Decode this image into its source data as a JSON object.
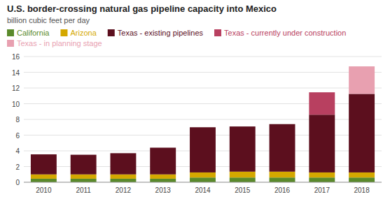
{
  "chart_data": {
    "type": "bar",
    "stacked": true,
    "title": "U.S. border-crossing natural gas pipeline capacity into Mexico",
    "subtitle": "billion cubic feet per day",
    "categories": [
      "2010",
      "2011",
      "2012",
      "2013",
      "2014",
      "2015",
      "2016",
      "2017",
      "2018"
    ],
    "series": [
      {
        "name": "California",
        "color": "#5a8a2b",
        "values": [
          0.45,
          0.45,
          0.45,
          0.45,
          0.6,
          0.6,
          0.6,
          0.6,
          0.6
        ]
      },
      {
        "name": "Arizona",
        "color": "#d4a800",
        "values": [
          0.55,
          0.55,
          0.55,
          0.55,
          0.65,
          0.75,
          0.75,
          0.65,
          0.65
        ]
      },
      {
        "name": "Texas - existing pipelines",
        "color": "#5c0f1e",
        "values": [
          2.55,
          2.5,
          2.7,
          3.4,
          5.75,
          5.75,
          6.05,
          7.35,
          10.0
        ]
      },
      {
        "name": "Texas - currently under construction",
        "color": "#b84060",
        "values": [
          0,
          0,
          0,
          0,
          0,
          0,
          0,
          2.85,
          0
        ]
      },
      {
        "name": "Texas - in planning stage",
        "color": "#e8a0b0",
        "values": [
          0,
          0,
          0,
          0,
          0,
          0,
          0,
          0,
          3.5
        ]
      }
    ],
    "ylim": [
      0,
      16
    ],
    "yticks": [
      0,
      2,
      4,
      6,
      8,
      10,
      12,
      14,
      16
    ],
    "grid": true,
    "legend": "top-left"
  }
}
